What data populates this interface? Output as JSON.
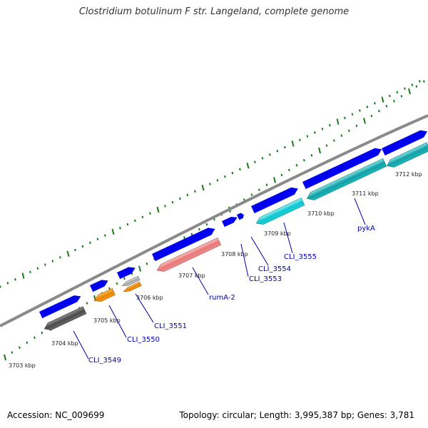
{
  "title": "Clostridium botulinum F str. Langeland, complete genome",
  "footer": {
    "accession": "Accession: NC_009699",
    "summary": "Topology: circular; Length: 3,995,387 bp; Genes: 3,781"
  },
  "colors": {
    "backbone": "#8a8a8a",
    "cds": "#0000f0",
    "tick": "#1a7a1a",
    "label": "#0000a8",
    "gray_gene": "#6a6a6a",
    "orange_gene": "#f39a1a",
    "light_gray_gene": "#bdbdbd",
    "pink_gene": "#f08c8c",
    "cyan_gene": "#1ccfd8",
    "teal_gene": "#1eb8bd"
  },
  "tick_labels": [
    {
      "label": "3703 kbp",
      "kbp": 3703
    },
    {
      "label": "3704 kbp",
      "kbp": 3704
    },
    {
      "label": "3705 kbp",
      "kbp": 3705
    },
    {
      "label": "3706 kbp",
      "kbp": 3706
    },
    {
      "label": "3707 kbp",
      "kbp": 3707
    },
    {
      "label": "3708 kbp",
      "kbp": 3708
    },
    {
      "label": "3709 kbp",
      "kbp": 3709
    },
    {
      "label": "3710 kbp",
      "kbp": 3710
    },
    {
      "label": "3711 kbp",
      "kbp": 3711
    },
    {
      "label": "3712 kbp",
      "kbp": 3712
    }
  ],
  "gene_labels": [
    {
      "name": "CLI_3549"
    },
    {
      "name": "CLI_3550"
    },
    {
      "name": "CLI_3551"
    },
    {
      "name": "rumA-2"
    },
    {
      "name": "CLI_3553"
    },
    {
      "name": "CLI_3554"
    },
    {
      "name": "CLI_3555"
    },
    {
      "name": "pykA"
    }
  ]
}
